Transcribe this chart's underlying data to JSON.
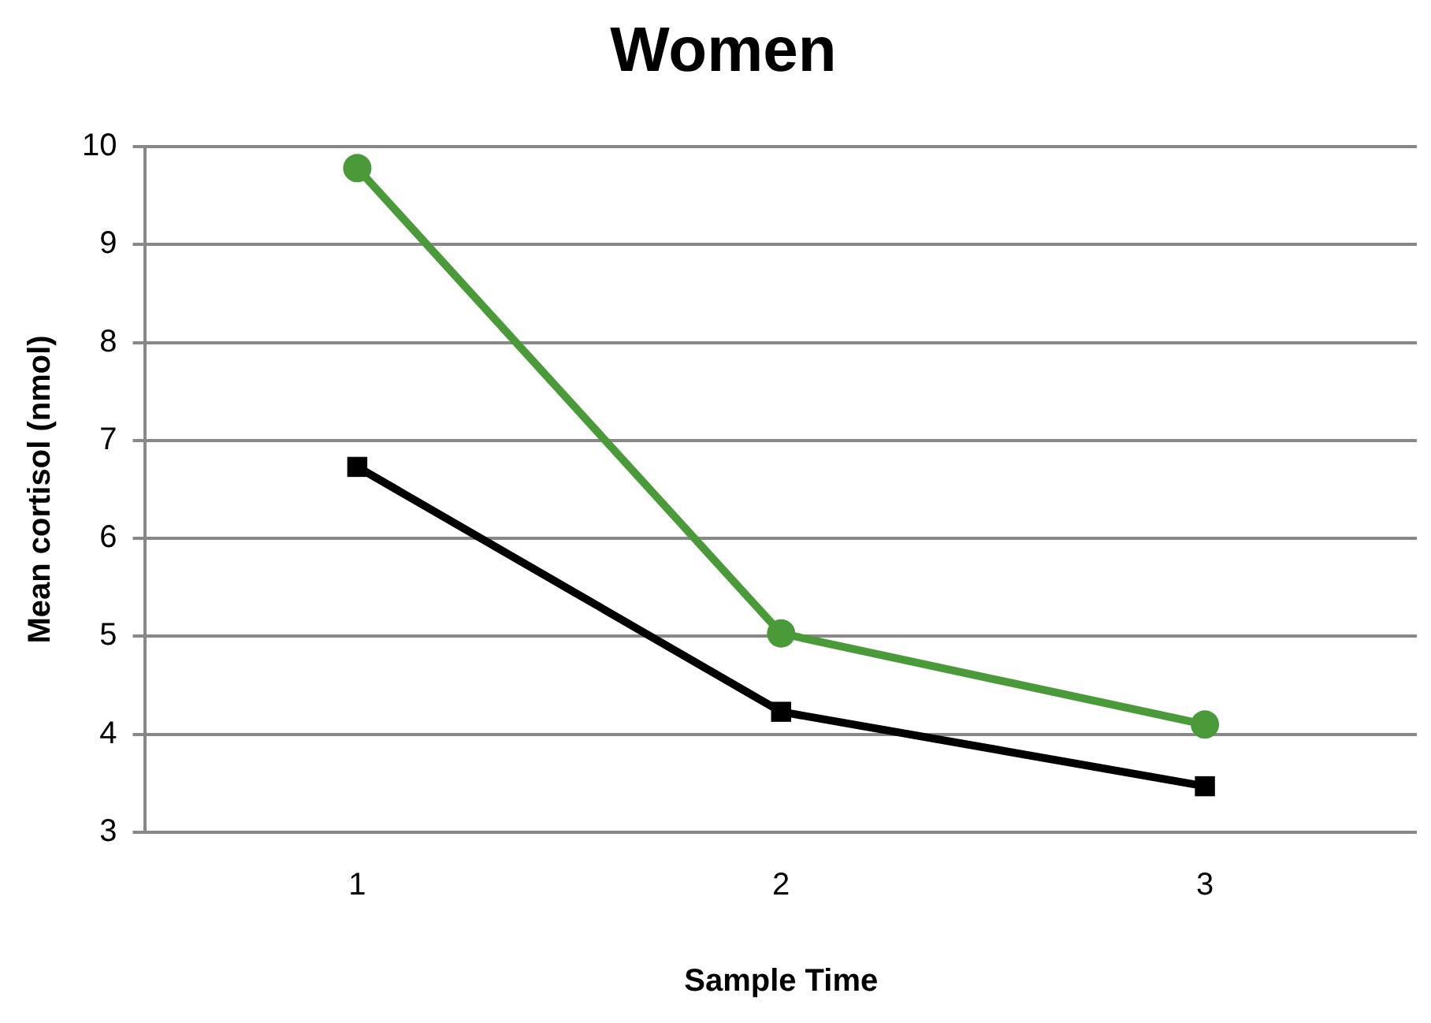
{
  "chart_data": {
    "type": "line",
    "title": "Women",
    "xlabel": "Sample Time",
    "ylabel": "Mean cortisol (nmol)",
    "categories": [
      "1",
      "2",
      "3"
    ],
    "series": [
      {
        "color": "#4a9a3a",
        "marker": "circle",
        "values": [
          9.78,
          5.03,
          4.1
        ]
      },
      {
        "color": "#000000",
        "marker": "square",
        "values": [
          6.73,
          4.23,
          3.47
        ]
      }
    ],
    "ylim": [
      3,
      10
    ],
    "yticks": [
      3,
      4,
      5,
      6,
      7,
      8,
      9,
      10
    ],
    "grid": "y",
    "legend": false,
    "line_style": "solid"
  }
}
